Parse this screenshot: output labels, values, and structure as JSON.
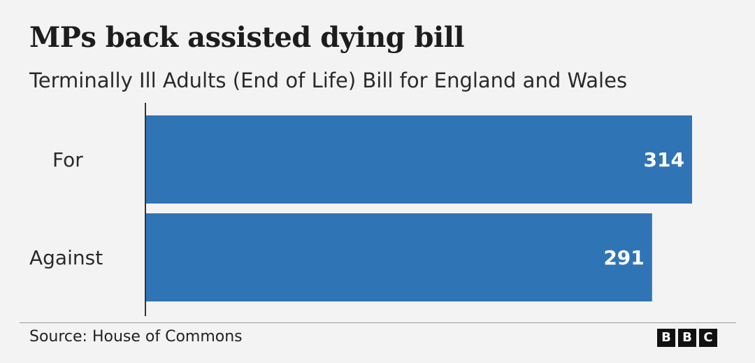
{
  "title": "MPs back assisted dying bill",
  "subtitle": "Terminally Ill Adults (End of Life) Bill for England and Wales",
  "source": "Source: House of Commons",
  "logo": {
    "letters": [
      "B",
      "B",
      "C"
    ]
  },
  "colors": {
    "bar": "#2f74b5",
    "background": "#f3f3f3",
    "axis": "#333333"
  },
  "chart_data": {
    "type": "bar",
    "orientation": "horizontal",
    "categories": [
      "For",
      "Against"
    ],
    "values": [
      314,
      291
    ],
    "value_labels": [
      "314",
      "291"
    ],
    "xlim": [
      0,
      314
    ],
    "grid": false
  }
}
